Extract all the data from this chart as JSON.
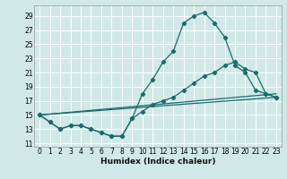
{
  "xlabel": "Humidex (Indice chaleur)",
  "bg_color": "#d0e8e8",
  "grid_color": "#ffffff",
  "line_color": "#1a6b6a",
  "xlim": [
    -0.5,
    23.5
  ],
  "ylim": [
    10.5,
    30.5
  ],
  "yticks": [
    11,
    13,
    15,
    17,
    19,
    21,
    23,
    25,
    27,
    29
  ],
  "xticks": [
    0,
    1,
    2,
    3,
    4,
    5,
    6,
    7,
    8,
    9,
    10,
    11,
    12,
    13,
    14,
    15,
    16,
    17,
    18,
    19,
    20,
    21,
    22,
    23
  ],
  "line1_x": [
    0,
    1,
    2,
    3,
    4,
    5,
    6,
    7,
    8,
    9,
    10,
    11,
    12,
    13,
    14,
    15,
    16,
    17,
    18,
    19,
    20,
    21,
    22,
    23
  ],
  "line1_y": [
    15,
    14,
    13,
    13.5,
    13.5,
    13,
    12.5,
    12,
    12,
    14.5,
    18,
    20,
    22.5,
    24,
    28,
    29,
    29.5,
    28,
    26,
    22,
    21,
    18.5,
    18,
    17.5
  ],
  "line2_x": [
    0,
    1,
    2,
    3,
    4,
    5,
    6,
    7,
    8,
    9,
    10,
    11,
    12,
    13,
    14,
    15,
    16,
    17,
    18,
    19,
    20,
    21,
    22,
    23
  ],
  "line2_y": [
    15,
    14,
    13,
    13.5,
    13.5,
    13,
    12.5,
    12,
    12,
    14.5,
    15.5,
    16.5,
    17,
    17.5,
    18.5,
    19.5,
    20.5,
    21,
    22,
    22.5,
    21.5,
    21,
    18,
    17.5
  ],
  "line3_x": [
    0,
    23
  ],
  "line3_y": [
    15,
    18
  ],
  "line4_x": [
    0,
    23
  ],
  "line4_y": [
    15,
    17.5
  ],
  "xlabel_fontsize": 6.5,
  "tick_fontsize": 5.5
}
